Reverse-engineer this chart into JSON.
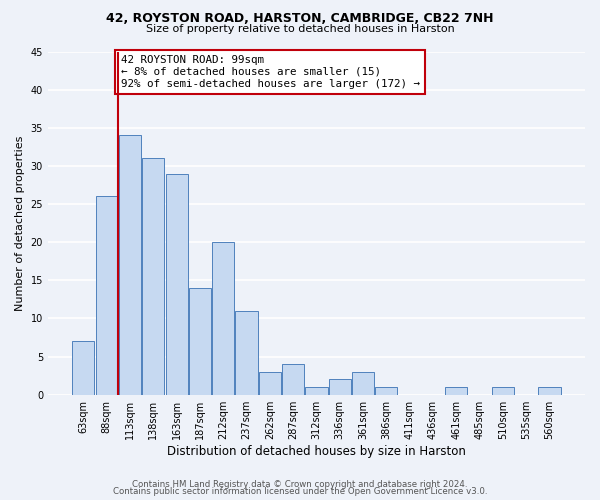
{
  "title1": "42, ROYSTON ROAD, HARSTON, CAMBRIDGE, CB22 7NH",
  "title2": "Size of property relative to detached houses in Harston",
  "xlabel": "Distribution of detached houses by size in Harston",
  "ylabel": "Number of detached properties",
  "bin_labels": [
    "63sqm",
    "88sqm",
    "113sqm",
    "138sqm",
    "163sqm",
    "187sqm",
    "212sqm",
    "237sqm",
    "262sqm",
    "287sqm",
    "312sqm",
    "336sqm",
    "361sqm",
    "386sqm",
    "411sqm",
    "436sqm",
    "461sqm",
    "485sqm",
    "510sqm",
    "535sqm",
    "560sqm"
  ],
  "bar_values": [
    7,
    26,
    34,
    31,
    29,
    14,
    20,
    11,
    3,
    4,
    1,
    2,
    3,
    1,
    0,
    0,
    1,
    0,
    1,
    0,
    1
  ],
  "bar_color": "#c6d9f1",
  "bar_edge_color": "#4f81bd",
  "vline_x": 1.5,
  "vline_color": "#c0000b",
  "annotation_box_text": "42 ROYSTON ROAD: 99sqm\n← 8% of detached houses are smaller (15)\n92% of semi-detached houses are larger (172) →",
  "annotation_box_color": "#c0000b",
  "annotation_box_fill": "#ffffff",
  "ylim": [
    0,
    45
  ],
  "yticks": [
    0,
    5,
    10,
    15,
    20,
    25,
    30,
    35,
    40,
    45
  ],
  "footer1": "Contains HM Land Registry data © Crown copyright and database right 2024.",
  "footer2": "Contains public sector information licensed under the Open Government Licence v3.0.",
  "bg_color": "#eef2f9",
  "grid_color": "#ffffff"
}
